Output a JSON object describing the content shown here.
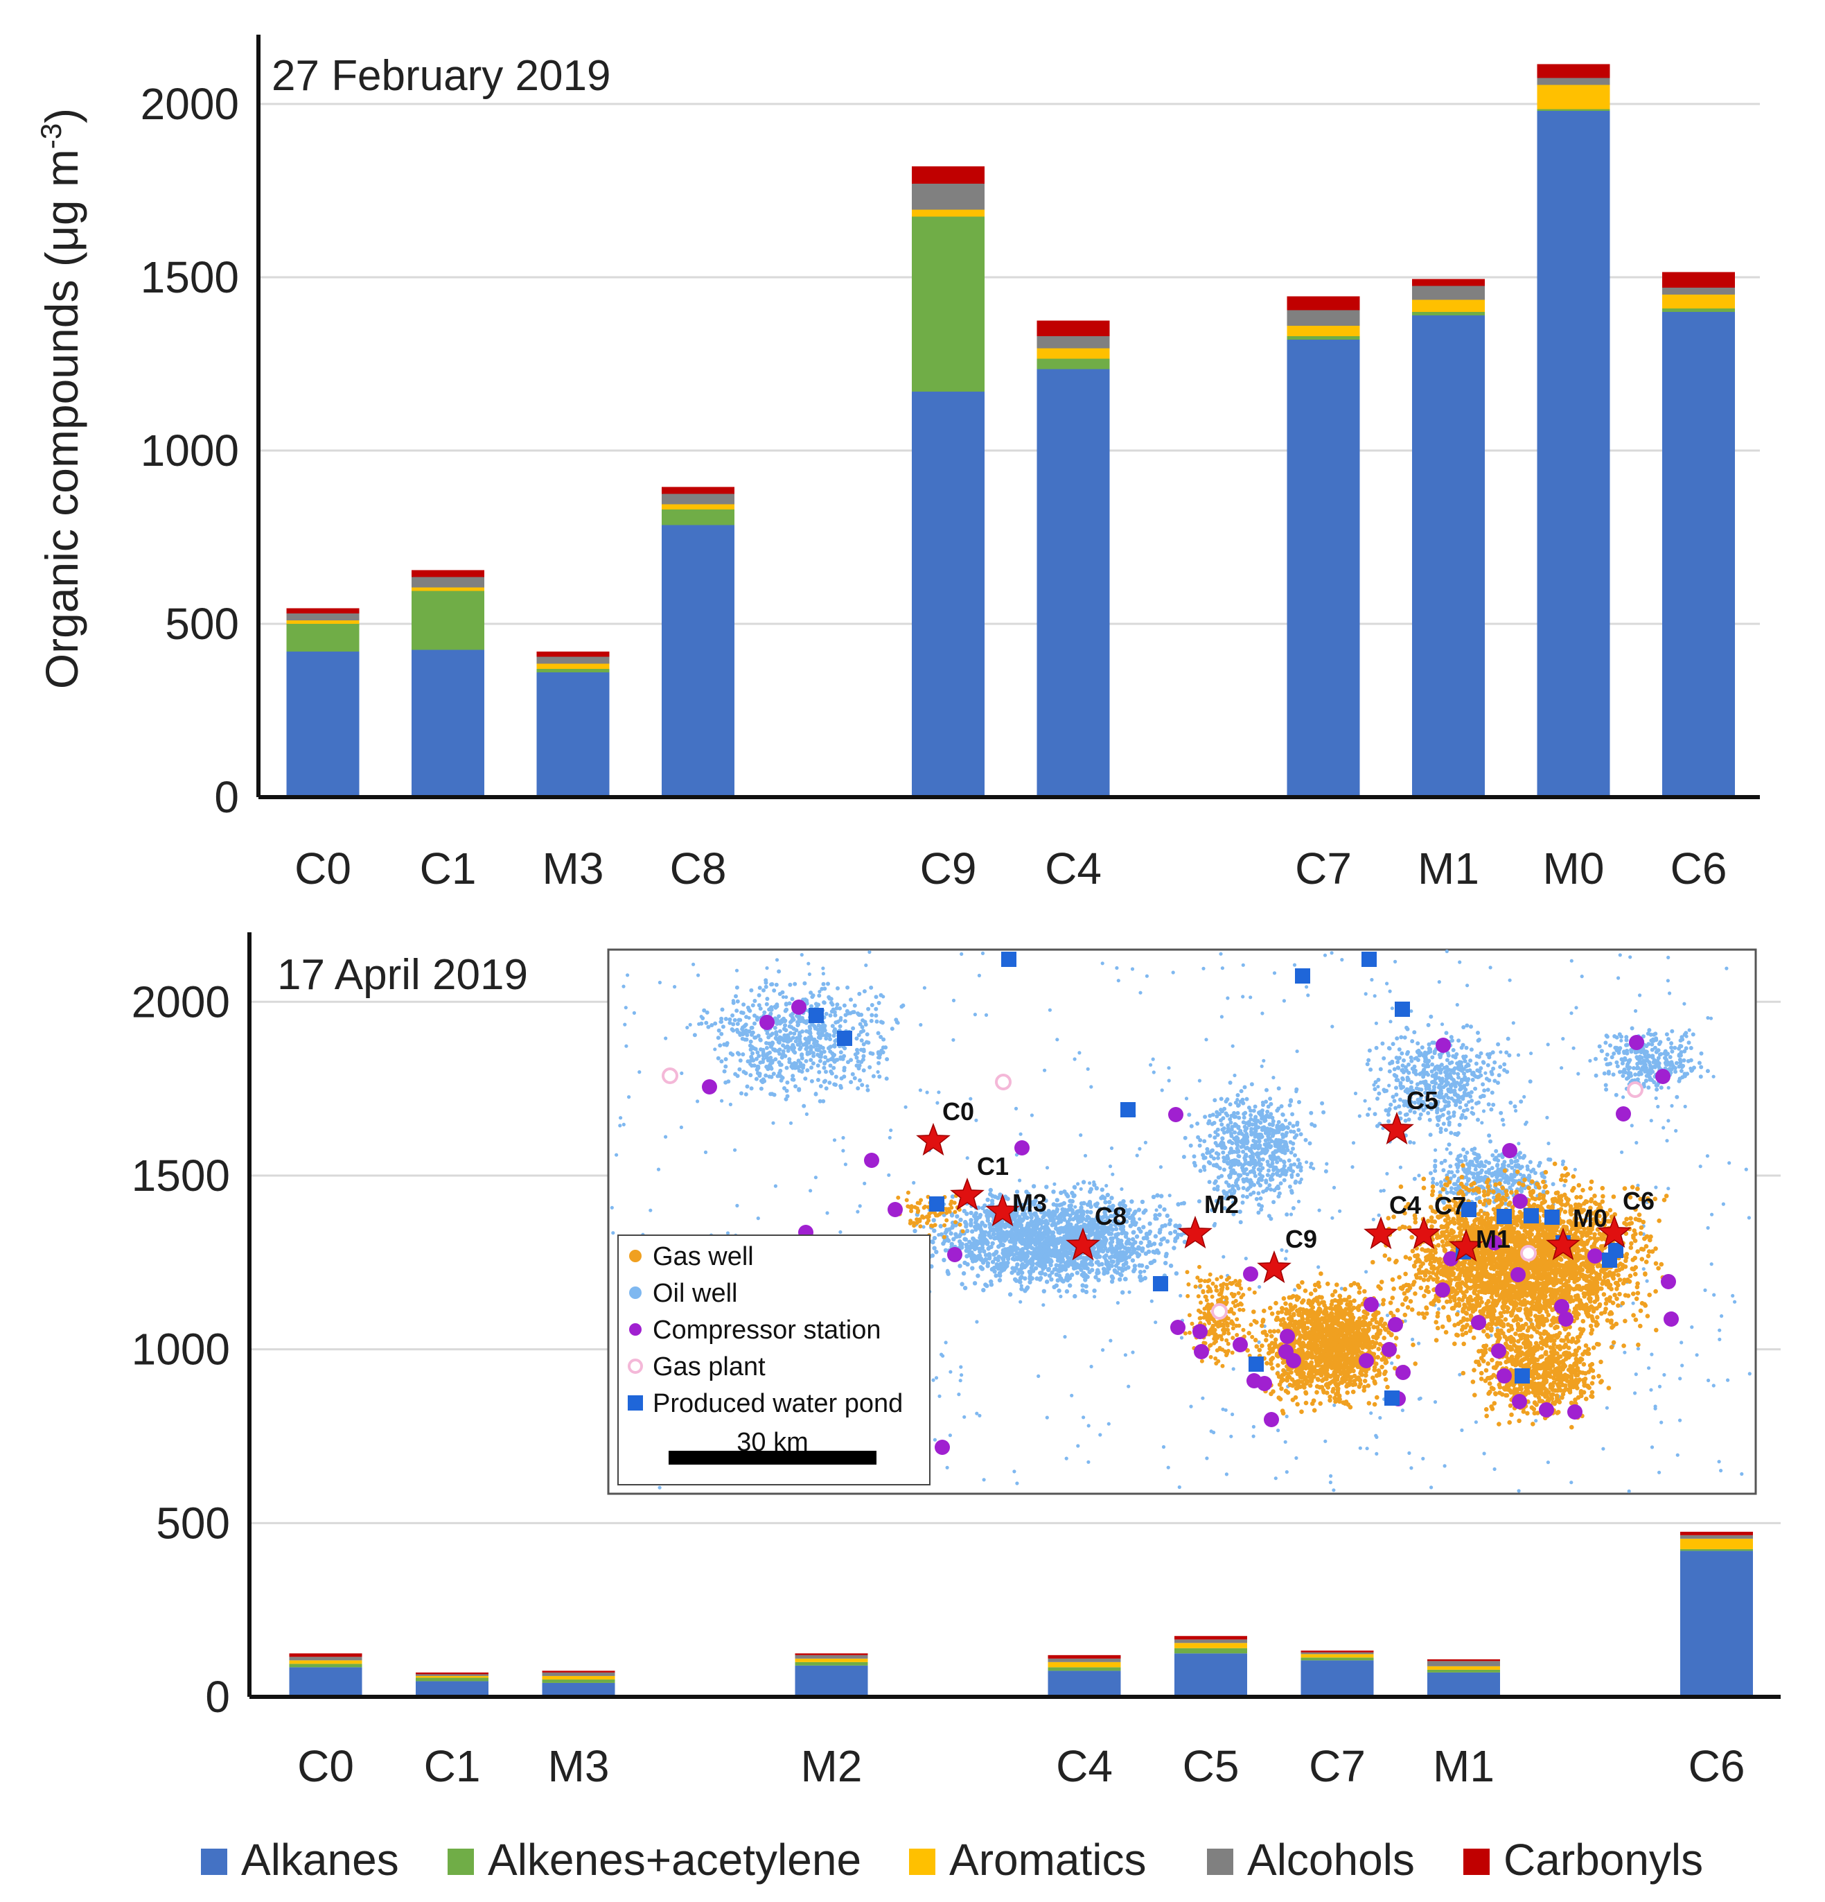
{
  "colors": {
    "Alkanes": "#4472c4",
    "Alkenes+acetylene": "#70ad47",
    "Aromatics": "#ffc000",
    "Alcohols": "#808080",
    "Carbonyls": "#c00000",
    "gas_well": "#f0a020",
    "oil_well": "#7fb8f0",
    "compressor": "#a020d0",
    "gas_plant": "#f4b8d8",
    "water_pond": "#1f66d9"
  },
  "y_axis_label": "Organic compounds (μg m-3)",
  "y_axis_label_main": "Organic compounds (μg m",
  "y_axis_label_sup": "-3",
  "y_axis_label_close": ")",
  "legend": [
    {
      "name": "Alkanes",
      "color_key": "Alkanes"
    },
    {
      "name": "Alkenes+acetylene",
      "color_key": "Alkenes+acetylene"
    },
    {
      "name": "Aromatics",
      "color_key": "Aromatics"
    },
    {
      "name": "Alcohols",
      "color_key": "Alcohols"
    },
    {
      "name": "Carbonyls",
      "color_key": "Carbonyls"
    }
  ],
  "chart_data": [
    {
      "type": "bar",
      "stacked": true,
      "title": "27 February 2019",
      "ylim": [
        0,
        2200
      ],
      "yticks": [
        0,
        500,
        1000,
        1500,
        2000
      ],
      "ytick_labels": [
        "0",
        "500",
        "1000",
        "1500",
        "2000"
      ],
      "gridlines": true,
      "slots": [
        "C0",
        "C1",
        "M3",
        "C8",
        "",
        "C9",
        "C4",
        "",
        "C7",
        "M1",
        "M0",
        "C6"
      ],
      "categories": [
        "C0",
        "C1",
        "M3",
        "C8",
        "C9",
        "C4",
        "C7",
        "M1",
        "M0",
        "C6"
      ],
      "series": [
        {
          "name": "Alkanes",
          "values": [
            420,
            425,
            360,
            785,
            1170,
            1235,
            1320,
            1390,
            1980,
            1400
          ]
        },
        {
          "name": "Alkenes+acetylene",
          "values": [
            80,
            170,
            10,
            45,
            505,
            30,
            10,
            10,
            5,
            10
          ]
        },
        {
          "name": "Aromatics",
          "values": [
            10,
            10,
            15,
            15,
            20,
            30,
            30,
            35,
            70,
            40
          ]
        },
        {
          "name": "Alcohols",
          "values": [
            20,
            30,
            20,
            30,
            75,
            35,
            45,
            40,
            20,
            20
          ]
        },
        {
          "name": "Carbonyls",
          "values": [
            15,
            20,
            15,
            20,
            50,
            45,
            40,
            20,
            40,
            45
          ]
        }
      ]
    },
    {
      "type": "bar",
      "stacked": true,
      "title": "17 April 2019",
      "ylim": [
        0,
        2200
      ],
      "yticks": [
        0,
        500,
        1000,
        1500,
        2000
      ],
      "ytick_labels": [
        "0",
        "500",
        "1000",
        "1500",
        "2000"
      ],
      "gridlines": true,
      "slots": [
        "C0",
        "C1",
        "M3",
        "",
        "M2",
        "",
        "C4",
        "C5",
        "C7",
        "M1",
        "",
        "C6"
      ],
      "categories": [
        "C0",
        "C1",
        "M3",
        "M2",
        "C4",
        "C5",
        "C7",
        "M1",
        "C6"
      ],
      "series": [
        {
          "name": "Alkanes",
          "values": [
            85,
            45,
            40,
            90,
            75,
            125,
            105,
            70,
            420
          ]
        },
        {
          "name": "Alkenes+acetylene",
          "values": [
            10,
            10,
            10,
            10,
            10,
            15,
            8,
            8,
            5
          ]
        },
        {
          "name": "Aromatics",
          "values": [
            10,
            5,
            10,
            10,
            15,
            15,
            10,
            10,
            30
          ]
        },
        {
          "name": "Alcohols",
          "values": [
            10,
            5,
            10,
            10,
            10,
            10,
            5,
            15,
            10
          ]
        },
        {
          "name": "Carbonyls",
          "values": [
            10,
            5,
            5,
            5,
            10,
            10,
            5,
            5,
            10
          ]
        }
      ]
    }
  ],
  "map_inset": {
    "legend": [
      {
        "label": "Gas well",
        "color_key": "gas_well",
        "shape": "circle"
      },
      {
        "label": "Oil well",
        "color_key": "oil_well",
        "shape": "circle"
      },
      {
        "label": "Compressor station",
        "color_key": "compressor",
        "shape": "circle"
      },
      {
        "label": "Gas plant",
        "color_key": "gas_plant",
        "shape": "ring"
      },
      {
        "label": "Produced water pond",
        "color_key": "water_pond",
        "shape": "square"
      }
    ],
    "scale_label": "30 km",
    "sites": [
      "C0",
      "C1",
      "M3",
      "C8",
      "M2",
      "C9",
      "C5",
      "C4",
      "C7",
      "M1",
      "M0",
      "C6"
    ]
  }
}
